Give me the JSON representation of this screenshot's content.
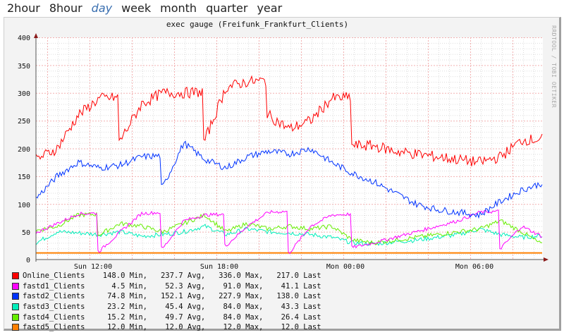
{
  "nav": {
    "items": [
      {
        "label": "2hour",
        "active": false
      },
      {
        "label": "8hour",
        "active": false
      },
      {
        "label": "day",
        "active": true
      },
      {
        "label": "week",
        "active": false
      },
      {
        "label": "month",
        "active": false
      },
      {
        "label": "quarter",
        "active": false
      },
      {
        "label": "year",
        "active": false
      }
    ]
  },
  "graph": {
    "title": "exec gauge (Freifunk_Frankfurt_Clients)",
    "watermark": "RRDTOOL / TOBI OETIKER",
    "y_ticks": [
      "0",
      "50",
      "100",
      "150",
      "200",
      "250",
      "300",
      "350",
      "400"
    ],
    "x_ticks": [
      "Sun 12:00",
      "Sun 18:00",
      "Mon 00:00",
      "Mon 06:00"
    ]
  },
  "legend": [
    {
      "name": "Online_Clients",
      "color": "#ff0000",
      "min": "148.0",
      "avg": "237.7",
      "max": "336.0",
      "last": "217.0"
    },
    {
      "name": "fastd1_Clients",
      "color": "#ff00ff",
      "min": "4.5",
      "avg": "52.3",
      "max": "91.0",
      "last": "41.1"
    },
    {
      "name": "fastd2_Clients",
      "color": "#0033ff",
      "min": "74.8",
      "avg": "152.1",
      "max": "227.9",
      "last": "138.0"
    },
    {
      "name": "fastd3_Clients",
      "color": "#00eebb",
      "min": "23.2",
      "avg": "45.4",
      "max": "84.0",
      "last": "43.3"
    },
    {
      "name": "fastd4_Clients",
      "color": "#66ee00",
      "min": "15.2",
      "avg": "49.7",
      "max": "84.0",
      "last": "26.4"
    },
    {
      "name": "fastd5_Clients",
      "color": "#ff8000",
      "min": "12.0",
      "avg": "12.0",
      "max": "12.0",
      "last": "12.0"
    }
  ],
  "legend_labels": {
    "min": "Min,",
    "avg": "Avg,",
    "max": "Max,",
    "last": "Last"
  },
  "chart_data": {
    "type": "line",
    "title": "exec gauge (Freifunk_Frankfurt_Clients)",
    "xlabel": "",
    "ylabel": "",
    "ylim": [
      0,
      400
    ],
    "grid": true,
    "legend_position": "bottom",
    "x": [
      "Sun 09:20",
      "Sun 10:00",
      "Sun 11:00",
      "Sun 12:00",
      "Sun 13:00",
      "Sun 14:00",
      "Sun 15:00",
      "Sun 16:00",
      "Sun 17:00",
      "Sun 18:00",
      "Sun 19:00",
      "Sun 20:00",
      "Sun 21:00",
      "Sun 22:00",
      "Sun 23:00",
      "Mon 00:00",
      "Mon 01:00",
      "Mon 02:00",
      "Mon 03:00",
      "Mon 04:00",
      "Mon 05:00",
      "Mon 06:00",
      "Mon 07:00",
      "Mon 08:00",
      "Mon 09:00"
    ],
    "x_ticks": [
      "Sun 12:00",
      "Sun 18:00",
      "Mon 00:00",
      "Mon 06:00"
    ],
    "series": [
      {
        "name": "Online_Clients",
        "color": "#ff0000",
        "values": [
          180,
          200,
          260,
          290,
          215,
          280,
          300,
          300,
          215,
          310,
          320,
          260,
          235,
          250,
          290,
          205,
          205,
          195,
          190,
          185,
          180,
          175,
          185,
          215,
          217
        ]
      },
      {
        "name": "fastd1_Clients",
        "color": "#ff00ff",
        "values": [
          48,
          65,
          82,
          15,
          50,
          83,
          20,
          70,
          80,
          25,
          60,
          85,
          12,
          60,
          80,
          22,
          30,
          40,
          50,
          60,
          70,
          85,
          20,
          60,
          41
        ]
      },
      {
        "name": "fastd2_Clients",
        "color": "#0033ff",
        "values": [
          110,
          150,
          175,
          165,
          170,
          185,
          130,
          210,
          180,
          165,
          185,
          195,
          190,
          200,
          175,
          155,
          140,
          120,
          100,
          90,
          85,
          80,
          105,
          125,
          138
        ]
      },
      {
        "name": "fastd3_Clients",
        "color": "#00eebb",
        "values": [
          30,
          50,
          48,
          45,
          50,
          42,
          45,
          50,
          60,
          45,
          55,
          50,
          48,
          45,
          40,
          30,
          28,
          32,
          35,
          40,
          45,
          55,
          45,
          40,
          43
        ]
      },
      {
        "name": "fastd4_Clients",
        "color": "#66ee00",
        "values": [
          52,
          60,
          80,
          45,
          65,
          60,
          50,
          65,
          80,
          50,
          65,
          55,
          60,
          55,
          60,
          35,
          30,
          35,
          40,
          45,
          50,
          55,
          70,
          50,
          26
        ]
      },
      {
        "name": "fastd5_Clients",
        "color": "#ff8000",
        "values": [
          12,
          12,
          12,
          12,
          12,
          12,
          12,
          12,
          12,
          12,
          12,
          12,
          12,
          12,
          12,
          12,
          12,
          12,
          12,
          12,
          12,
          12,
          12,
          12,
          12
        ]
      }
    ]
  }
}
